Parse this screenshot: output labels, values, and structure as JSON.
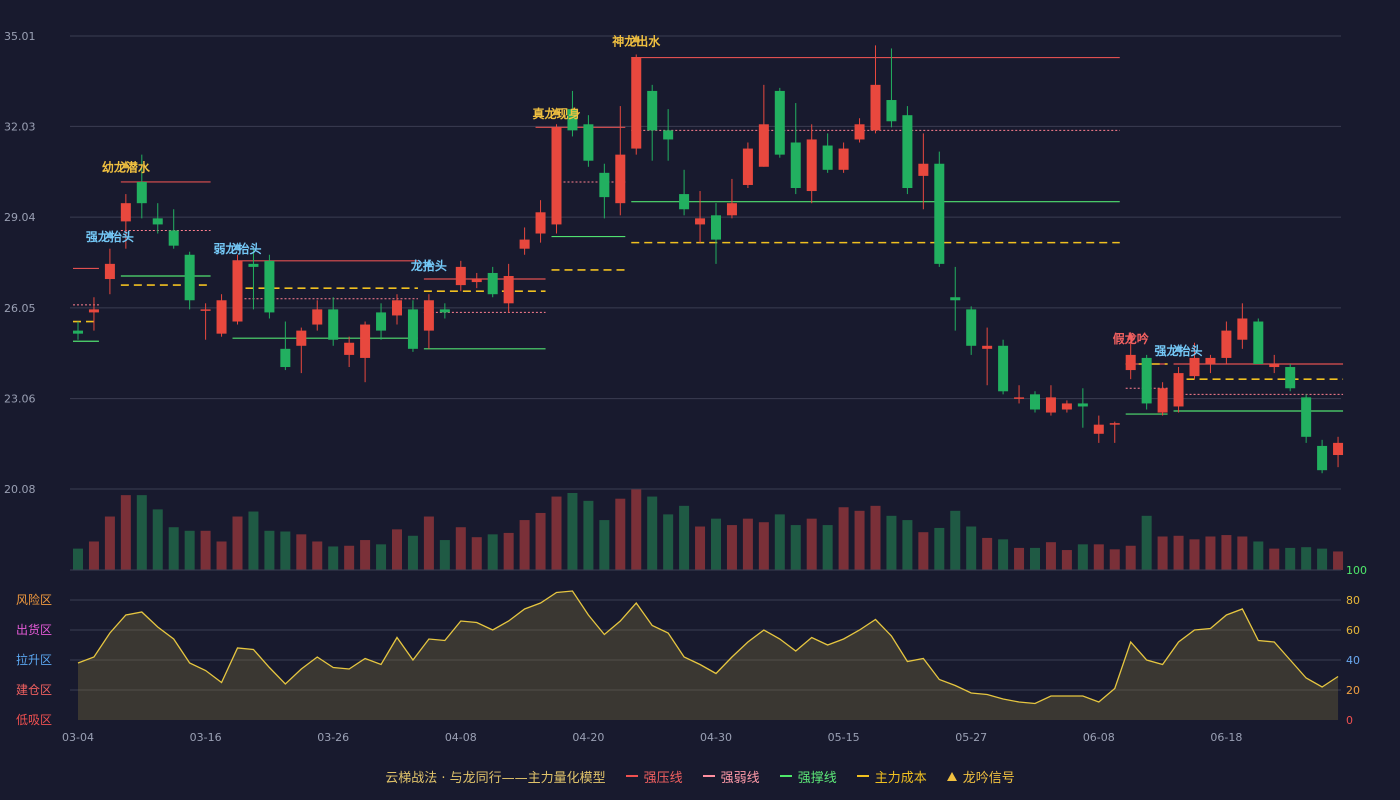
{
  "colors": {
    "background": "#181a2e",
    "up": "#e8483e",
    "down": "#22b060",
    "pressure": "#e05050",
    "weak": "#ff8090",
    "support": "#50e070",
    "cost": "#f0c020",
    "emotion_line": "#e6c640",
    "signal_gold": "#f0c040",
    "signal_blue": "#74c8f6",
    "signal_red": "#f26060"
  },
  "legend": {
    "title": "云梯战法 · 与龙同行——主力量化模型",
    "pressure": "强压线",
    "weak": "强弱线",
    "support": "强撑线",
    "cost": "主力成本",
    "signal": "龙吟信号"
  },
  "emotion_zones": [
    {
      "label": "风险区",
      "color": "#f29a3e"
    },
    {
      "label": "出货区",
      "color": "#e45ad6"
    },
    {
      "label": "拉升区",
      "color": "#5aa6f0"
    },
    {
      "label": "建仓区",
      "color": "#f06060"
    },
    {
      "label": "低吸区",
      "color": "#f05050"
    }
  ],
  "chart_data": {
    "type": "candlestick",
    "y_ticks": [
      "35.01",
      "32.03",
      "29.04",
      "26.05",
      "23.06",
      "20.08"
    ],
    "ylim": [
      20.08,
      35.01
    ],
    "x_ticks": [
      {
        "label": "03-04",
        "index": 0
      },
      {
        "label": "03-16",
        "index": 8
      },
      {
        "label": "03-26",
        "index": 16
      },
      {
        "label": "04-08",
        "index": 24
      },
      {
        "label": "04-20",
        "index": 32
      },
      {
        "label": "04-30",
        "index": 40
      },
      {
        "label": "05-15",
        "index": 48
      },
      {
        "label": "05-27",
        "index": 56
      },
      {
        "label": "06-08",
        "index": 64
      },
      {
        "label": "06-18",
        "index": 72
      }
    ],
    "ohlc": [
      [
        25.3,
        25.6,
        25.0,
        25.2
      ],
      [
        25.9,
        26.4,
        25.3,
        26.0
      ],
      [
        27.0,
        28.0,
        26.5,
        27.5
      ],
      [
        28.9,
        29.8,
        28.0,
        29.5
      ],
      [
        30.2,
        31.1,
        29.0,
        29.5
      ],
      [
        29.0,
        29.5,
        28.5,
        28.8
      ],
      [
        28.6,
        29.3,
        28.0,
        28.1
      ],
      [
        27.8,
        27.9,
        26.0,
        26.3
      ],
      [
        26.0,
        26.2,
        25.0,
        26.0
      ],
      [
        25.2,
        26.5,
        25.1,
        26.3
      ],
      [
        25.6,
        27.8,
        25.5,
        27.6
      ],
      [
        27.5,
        28.0,
        26.0,
        27.4
      ],
      [
        27.6,
        27.8,
        25.7,
        25.9
      ],
      [
        24.7,
        25.6,
        24.0,
        24.1
      ],
      [
        24.8,
        25.4,
        23.9,
        25.3
      ],
      [
        25.5,
        26.3,
        25.3,
        26.0
      ],
      [
        26.0,
        26.4,
        24.8,
        25.0
      ],
      [
        24.5,
        25.1,
        24.1,
        24.9
      ],
      [
        24.4,
        25.6,
        23.6,
        25.5
      ],
      [
        25.9,
        26.2,
        25.0,
        25.3
      ],
      [
        25.8,
        26.5,
        25.5,
        26.3
      ],
      [
        26.0,
        26.3,
        24.6,
        24.7
      ],
      [
        25.3,
        26.5,
        24.7,
        26.3
      ],
      [
        26.0,
        26.2,
        25.7,
        25.9
      ],
      [
        26.8,
        27.6,
        26.6,
        27.4
      ],
      [
        26.9,
        27.2,
        26.7,
        27.0
      ],
      [
        27.2,
        27.4,
        26.4,
        26.5
      ],
      [
        26.2,
        27.5,
        25.9,
        27.1
      ],
      [
        28.0,
        28.7,
        27.8,
        28.3
      ],
      [
        28.5,
        29.6,
        28.2,
        29.2
      ],
      [
        28.8,
        32.1,
        28.5,
        32.0
      ],
      [
        32.6,
        33.2,
        31.7,
        31.9
      ],
      [
        32.1,
        32.4,
        30.7,
        30.9
      ],
      [
        30.5,
        30.8,
        29.0,
        29.7
      ],
      [
        29.5,
        32.7,
        29.1,
        31.1
      ],
      [
        31.3,
        34.4,
        31.1,
        34.3
      ],
      [
        33.2,
        33.4,
        30.9,
        31.9
      ],
      [
        31.9,
        32.6,
        30.9,
        31.6
      ],
      [
        29.8,
        30.6,
        29.1,
        29.3
      ],
      [
        28.8,
        29.9,
        28.2,
        29.0
      ],
      [
        29.1,
        29.5,
        27.5,
        28.3
      ],
      [
        29.1,
        30.3,
        29.0,
        29.5
      ],
      [
        30.1,
        31.5,
        30.0,
        31.3
      ],
      [
        30.7,
        33.4,
        30.7,
        32.1
      ],
      [
        33.2,
        33.3,
        31.0,
        31.1
      ],
      [
        31.5,
        32.8,
        29.8,
        30.0
      ],
      [
        29.9,
        32.1,
        29.5,
        31.6
      ],
      [
        31.4,
        31.8,
        30.5,
        30.6
      ],
      [
        30.6,
        31.5,
        30.5,
        31.3
      ],
      [
        31.6,
        32.3,
        31.5,
        32.1
      ],
      [
        31.9,
        34.7,
        31.8,
        33.4
      ],
      [
        32.9,
        34.6,
        32.0,
        32.2
      ],
      [
        32.4,
        32.7,
        29.8,
        30.0
      ],
      [
        30.4,
        31.8,
        29.3,
        30.8
      ],
      [
        30.8,
        31.2,
        27.4,
        27.5
      ],
      [
        26.4,
        27.4,
        25.3,
        26.3
      ],
      [
        26.0,
        26.1,
        24.5,
        24.8
      ],
      [
        24.7,
        25.4,
        23.5,
        24.8
      ],
      [
        24.8,
        25.0,
        23.2,
        23.3
      ],
      [
        23.1,
        23.5,
        22.9,
        23.1
      ],
      [
        23.2,
        23.3,
        22.6,
        22.7
      ],
      [
        22.6,
        23.5,
        22.5,
        23.1
      ],
      [
        22.7,
        23.0,
        22.6,
        22.9
      ],
      [
        22.9,
        23.4,
        22.1,
        22.8
      ],
      [
        21.9,
        22.5,
        21.6,
        22.2
      ],
      [
        22.2,
        22.3,
        21.6,
        22.25
      ],
      [
        24.0,
        25.2,
        23.7,
        24.5
      ],
      [
        24.4,
        24.5,
        22.7,
        22.9
      ],
      [
        22.6,
        23.6,
        22.5,
        23.4
      ],
      [
        22.8,
        24.1,
        22.6,
        23.9
      ],
      [
        23.8,
        24.9,
        23.7,
        24.4
      ],
      [
        24.2,
        24.5,
        23.9,
        24.4
      ],
      [
        24.4,
        25.6,
        24.2,
        25.3
      ],
      [
        25.0,
        26.2,
        24.7,
        25.7
      ],
      [
        25.6,
        25.7,
        24.2,
        24.2
      ],
      [
        24.1,
        24.5,
        23.9,
        24.2
      ],
      [
        24.1,
        24.2,
        23.3,
        23.4
      ],
      [
        23.1,
        23.2,
        21.6,
        21.8
      ],
      [
        21.5,
        21.7,
        20.6,
        20.7
      ],
      [
        21.2,
        21.8,
        20.8,
        21.6
      ]
    ],
    "volume": [
      30,
      40,
      75,
      105,
      105,
      85,
      60,
      55,
      55,
      40,
      75,
      82,
      55,
      54,
      50,
      40,
      33,
      34,
      42,
      36,
      57,
      48,
      75,
      42,
      60,
      46,
      50,
      52,
      70,
      80,
      103,
      108,
      97,
      70,
      100,
      113,
      103,
      78,
      90,
      61,
      72,
      63,
      72,
      67,
      78,
      63,
      72,
      63,
      88,
      83,
      90,
      76,
      70,
      53,
      59,
      83,
      61,
      45,
      43,
      31,
      31,
      39,
      28,
      36,
      36,
      29,
      34,
      76,
      47,
      48,
      43,
      47,
      49,
      47,
      40,
      30,
      31,
      32,
      30,
      26
    ],
    "emotion": [
      38,
      42,
      58,
      70,
      72,
      62,
      54,
      38,
      33,
      25,
      48,
      47,
      35,
      24,
      34,
      42,
      35,
      34,
      41,
      37,
      55,
      40,
      54,
      53,
      66,
      65,
      60,
      66,
      74,
      78,
      85,
      86,
      70,
      57,
      66,
      78,
      63,
      58,
      42,
      37,
      31,
      42,
      52,
      60,
      54,
      46,
      55,
      50,
      54,
      60,
      67,
      56,
      39,
      41,
      27,
      23,
      18,
      17,
      14,
      12,
      11,
      16,
      16,
      16,
      12,
      21,
      52,
      40,
      37,
      52,
      60,
      61,
      70,
      74,
      53,
      52,
      40,
      28,
      22,
      29
    ],
    "emotion_ticks": [
      "100",
      "80",
      "60",
      "40",
      "20",
      "0"
    ],
    "pressure_lines": [
      {
        "from": 0,
        "to": 1,
        "price": 27.35
      },
      {
        "from": 3,
        "to": 8,
        "price": 30.2
      },
      {
        "from": 10,
        "to": 21,
        "price": 27.6
      },
      {
        "from": 22,
        "to": 29,
        "price": 27.0
      },
      {
        "from": 29,
        "to": 34,
        "price": 32.0
      },
      {
        "from": 35,
        "to": 65,
        "price": 34.3
      },
      {
        "from": 66,
        "to": 68,
        "price": 24.2
      },
      {
        "from": 69,
        "to": 79,
        "price": 24.2
      }
    ],
    "weak_lines": [
      {
        "from": 0,
        "to": 1,
        "price": 26.15
      },
      {
        "from": 3,
        "to": 8,
        "price": 28.6
      },
      {
        "from": 10,
        "to": 21,
        "price": 26.35
      },
      {
        "from": 22,
        "to": 29,
        "price": 25.9
      },
      {
        "from": 30,
        "to": 34,
        "price": 30.2
      },
      {
        "from": 35,
        "to": 65,
        "price": 31.9
      },
      {
        "from": 66,
        "to": 68,
        "price": 23.4
      },
      {
        "from": 69,
        "to": 79,
        "price": 23.2
      }
    ],
    "support_lines": [
      {
        "from": 0,
        "to": 1,
        "price": 24.95
      },
      {
        "from": 3,
        "to": 8,
        "price": 27.1
      },
      {
        "from": 10,
        "to": 21,
        "price": 25.05
      },
      {
        "from": 22,
        "to": 29,
        "price": 24.7
      },
      {
        "from": 30,
        "to": 34,
        "price": 28.4
      },
      {
        "from": 35,
        "to": 65,
        "price": 29.55
      },
      {
        "from": 66,
        "to": 68,
        "price": 22.55
      },
      {
        "from": 69,
        "to": 79,
        "price": 22.65
      }
    ],
    "cost_lines": [
      {
        "from": 0,
        "to": 1,
        "price": 25.6
      },
      {
        "from": 3,
        "to": 8,
        "price": 26.8
      },
      {
        "from": 10,
        "to": 21,
        "price": 26.7
      },
      {
        "from": 22,
        "to": 29,
        "price": 26.6
      },
      {
        "from": 30,
        "to": 34,
        "price": 27.3
      },
      {
        "from": 35,
        "to": 65,
        "price": 28.2
      },
      {
        "from": 66,
        "to": 68,
        "price": 24.2
      },
      {
        "from": 69,
        "to": 79,
        "price": 23.7
      }
    ],
    "signals": [
      {
        "label": "强龙抬头",
        "index": 2,
        "price": 28.25,
        "color": "signal_blue"
      },
      {
        "label": "幼龙潜水",
        "index": 3,
        "price": 30.55,
        "color": "signal_gold"
      },
      {
        "label": "弱龙抬头",
        "index": 10,
        "price": 27.85,
        "color": "signal_blue"
      },
      {
        "label": "龙抬头",
        "index": 22,
        "price": 27.3,
        "color": "signal_blue"
      },
      {
        "label": "真龙现身",
        "index": 30,
        "price": 32.3,
        "color": "signal_gold"
      },
      {
        "label": "神龙出水",
        "index": 35,
        "price": 34.7,
        "color": "signal_gold"
      },
      {
        "label": "假龙吟",
        "index": 66,
        "price": 24.9,
        "color": "signal_red"
      },
      {
        "label": "强龙抬头",
        "index": 69,
        "price": 24.5,
        "color": "signal_blue"
      }
    ]
  }
}
